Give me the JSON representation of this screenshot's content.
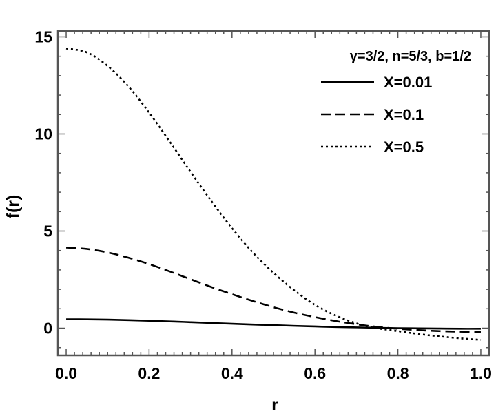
{
  "chart_data": {
    "type": "line",
    "title": "",
    "xlabel": "r",
    "ylabel": "f(r)",
    "xlim": [
      -0.02,
      1.02
    ],
    "ylim": [
      -1.4,
      15.3
    ],
    "x_ticks": [
      0.0,
      0.2,
      0.4,
      0.6,
      0.8,
      1.0
    ],
    "x_tick_labels": [
      "0.0",
      "0.2",
      "0.4",
      "0.6",
      "0.8",
      "1.0"
    ],
    "y_ticks": [
      0,
      5,
      10,
      15
    ],
    "y_tick_labels": [
      "0",
      "5",
      "10",
      "15"
    ],
    "grid": false,
    "legend_position": "top-right",
    "legend_title": "γ=3/2, n=5/3, b=1/2",
    "x": [
      0.0,
      0.05,
      0.1,
      0.15,
      0.2,
      0.25,
      0.3,
      0.35,
      0.4,
      0.45,
      0.5,
      0.55,
      0.6,
      0.65,
      0.7,
      0.75,
      0.8,
      0.85,
      0.9,
      0.95,
      1.0
    ],
    "series": [
      {
        "name": "X=0.01",
        "style": "solid",
        "color": "#000000",
        "values": [
          0.46,
          0.455,
          0.44,
          0.415,
          0.385,
          0.35,
          0.31,
          0.27,
          0.23,
          0.19,
          0.155,
          0.12,
          0.09,
          0.06,
          0.04,
          0.02,
          0.0,
          -0.01,
          -0.02,
          -0.03,
          -0.03
        ]
      },
      {
        "name": "X=0.1",
        "style": "dashed",
        "color": "#000000",
        "values": [
          4.15,
          4.08,
          3.9,
          3.63,
          3.3,
          2.92,
          2.52,
          2.12,
          1.75,
          1.4,
          1.08,
          0.8,
          0.57,
          0.37,
          0.2,
          0.07,
          -0.03,
          -0.1,
          -0.15,
          -0.18,
          -0.2
        ]
      },
      {
        "name": "X=0.5",
        "style": "dotted",
        "color": "#000000",
        "values": [
          14.4,
          14.2,
          13.5,
          12.45,
          11.1,
          9.6,
          8.05,
          6.55,
          5.15,
          3.9,
          2.85,
          1.95,
          1.2,
          0.65,
          0.25,
          0.0,
          -0.15,
          -0.3,
          -0.42,
          -0.52,
          -0.6
        ]
      }
    ]
  }
}
